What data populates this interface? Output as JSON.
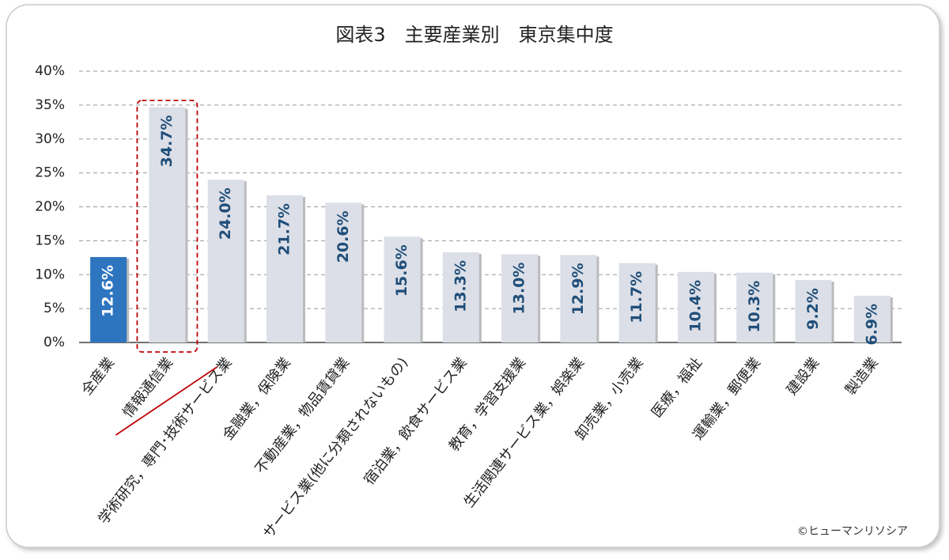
{
  "chart_data": {
    "type": "bar",
    "title": "図表3　主要産業別　東京集中度",
    "categories": [
      "全産業",
      "情報通信業",
      "学術研究，専門･技術サービス業",
      "金融業，保険業",
      "不動産業，物品賃貸業",
      "サービス業(他に分類されないもの)",
      "宿泊業，飲食サービス業",
      "教育，学習支援業",
      "生活関連サービス業，娯楽業",
      "卸売業，小売業",
      "医療，福祉",
      "運輸業，郵便業",
      "建設業",
      "製造業"
    ],
    "values": [
      12.6,
      34.7,
      24.0,
      21.7,
      20.6,
      15.6,
      13.3,
      13.0,
      12.9,
      11.7,
      10.4,
      10.3,
      9.2,
      6.9
    ],
    "value_labels": [
      "12.6%",
      "34.7%",
      "24.0%",
      "21.7%",
      "20.6%",
      "15.6%",
      "13.3%",
      "13.0%",
      "12.9%",
      "11.7%",
      "10.4%",
      "10.3%",
      "9.2%",
      "6.9%"
    ],
    "colors": [
      "#2e75c0",
      "#dcdfe7",
      "#dcdfe7",
      "#dcdfe7",
      "#dcdfe7",
      "#dcdfe7",
      "#dcdfe7",
      "#dcdfe7",
      "#dcdfe7",
      "#dcdfe7",
      "#dcdfe7",
      "#dcdfe7",
      "#dcdfe7",
      "#dcdfe7"
    ],
    "value_label_colors": [
      "#ffffff",
      "#1f4e79",
      "#1f4e79",
      "#1f4e79",
      "#1f4e79",
      "#1f4e79",
      "#1f4e79",
      "#1f4e79",
      "#1f4e79",
      "#1f4e79",
      "#1f4e79",
      "#1f4e79",
      "#1f4e79",
      "#1f4e79"
    ],
    "ylim": [
      0,
      40
    ],
    "yticks": [
      {
        "value": 0,
        "label": "0%"
      },
      {
        "value": 5,
        "label": "5%"
      },
      {
        "value": 10,
        "label": "10%"
      },
      {
        "value": 15,
        "label": "15%"
      },
      {
        "value": 20,
        "label": "20%"
      },
      {
        "value": 25,
        "label": "25%"
      },
      {
        "value": 30,
        "label": "30%"
      },
      {
        "value": 35,
        "label": "35%"
      },
      {
        "value": 40,
        "label": "40%"
      }
    ],
    "grid": true,
    "source": "©ヒューマンリソシア"
  }
}
